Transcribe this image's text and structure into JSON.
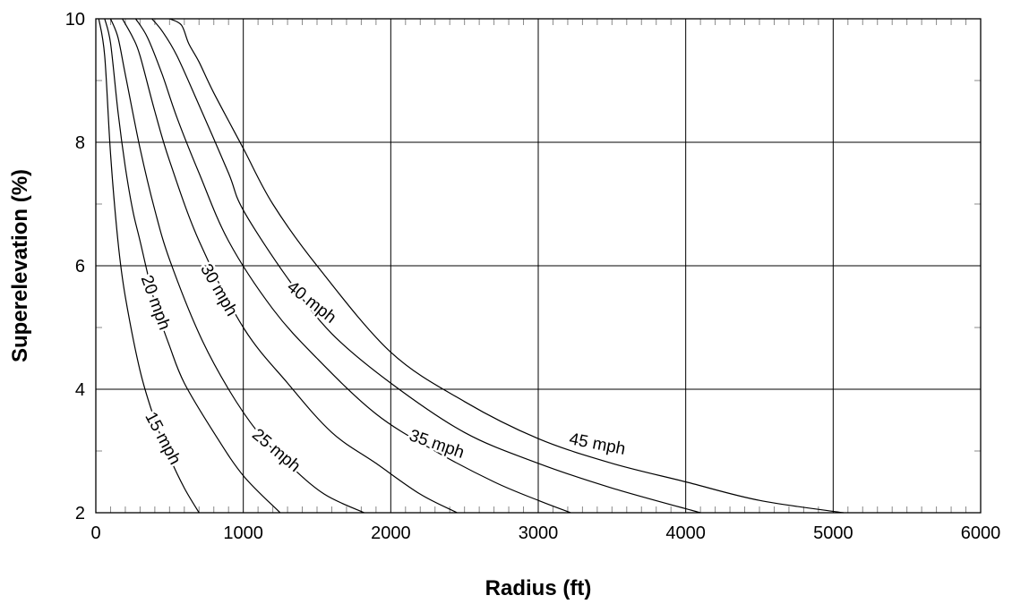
{
  "chart_data": {
    "type": "line",
    "title": "",
    "xlabel": "Radius (ft)",
    "ylabel": "Superelevation (%)",
    "xlim": [
      0,
      6000
    ],
    "ylim": [
      2,
      10
    ],
    "xticks": [
      "0",
      "1000",
      "2000",
      "3000",
      "4000",
      "5000",
      "6000"
    ],
    "yticks": [
      "2",
      "4",
      "6",
      "8",
      "10"
    ],
    "grid": true,
    "series": [
      {
        "name": "15 mph",
        "x": [
          20,
          60,
          100,
          150,
          200,
          300,
          400,
          500,
          600,
          700
        ],
        "y": [
          10,
          9.4,
          7.8,
          6.4,
          5.5,
          4.3,
          3.5,
          2.9,
          2.4,
          2.0
        ]
      },
      {
        "name": "20 mph",
        "x": [
          60,
          100,
          150,
          200,
          250,
          300,
          400,
          500,
          600,
          800,
          1000,
          1250
        ],
        "y": [
          10,
          9.6,
          8.5,
          7.6,
          6.9,
          6.4,
          5.4,
          4.7,
          4.1,
          3.3,
          2.6,
          2.0
        ]
      },
      {
        "name": "25 mph",
        "x": [
          100,
          150,
          200,
          300,
          400,
          500,
          700,
          900,
          1100,
          1300,
          1550,
          1820
        ],
        "y": [
          10,
          9.7,
          9.1,
          7.9,
          6.9,
          6.1,
          4.9,
          4.0,
          3.3,
          2.8,
          2.3,
          2.0
        ]
      },
      {
        "name": "30 mph",
        "x": [
          180,
          250,
          300,
          400,
          500,
          700,
          1000,
          1300,
          1600,
          1900,
          2200,
          2450
        ],
        "y": [
          10,
          9.7,
          9.4,
          8.5,
          7.7,
          6.4,
          5.0,
          4.1,
          3.3,
          2.8,
          2.3,
          2.0
        ]
      },
      {
        "name": "35 mph",
        "x": [
          270,
          350,
          450,
          550,
          700,
          900,
          1200,
          1500,
          1900,
          2300,
          2700,
          3000,
          3220
        ],
        "y": [
          10,
          9.7,
          9.1,
          8.4,
          7.5,
          6.4,
          5.3,
          4.5,
          3.6,
          3.0,
          2.5,
          2.2,
          2.0
        ]
      },
      {
        "name": "40 mph",
        "x": [
          380,
          450,
          550,
          700,
          900,
          1000,
          1300,
          1600,
          2000,
          2500,
          3000,
          3500,
          4100
        ],
        "y": [
          10,
          9.8,
          9.4,
          8.6,
          7.5,
          6.9,
          5.8,
          4.9,
          4.1,
          3.3,
          2.8,
          2.4,
          2.0
        ]
      },
      {
        "name": "45 mph",
        "x": [
          500,
          580,
          630,
          700,
          800,
          1000,
          1200,
          1500,
          2000,
          2500,
          3000,
          3500,
          4000,
          4500,
          5070
        ],
        "y": [
          10,
          9.9,
          9.6,
          9.3,
          8.8,
          7.9,
          7.0,
          6.0,
          4.6,
          3.8,
          3.2,
          2.8,
          2.5,
          2.2,
          2.0
        ]
      }
    ],
    "labels": [
      {
        "text": "15 mph",
        "x": 450,
        "y": 3.2,
        "angle": 62
      },
      {
        "text": "20 mph",
        "x": 400,
        "y": 5.4,
        "angle": 70
      },
      {
        "text": "25 mph",
        "x": 1220,
        "y": 3.0,
        "angle": 40
      },
      {
        "text": "30 mph",
        "x": 830,
        "y": 5.6,
        "angle": 60
      },
      {
        "text": "35 mph",
        "x": 2310,
        "y": 3.1,
        "angle": 19
      },
      {
        "text": "40 mph",
        "x": 1460,
        "y": 5.4,
        "angle": 38
      },
      {
        "text": "45 mph",
        "x": 3400,
        "y": 3.1,
        "angle": 11
      }
    ]
  }
}
